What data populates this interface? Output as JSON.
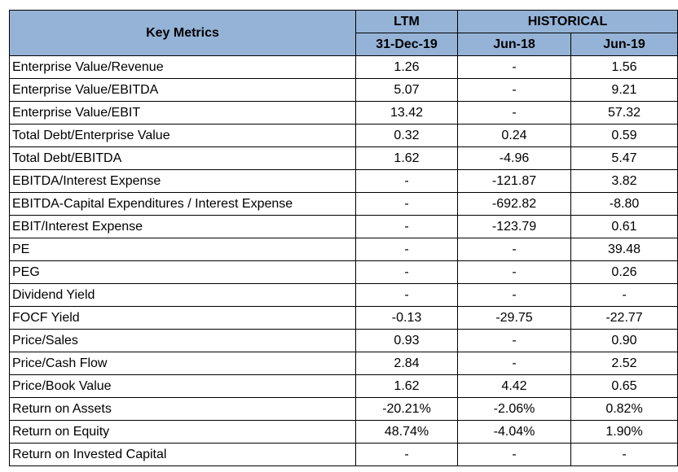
{
  "header": {
    "key_metrics": "Key Metrics",
    "ltm": "LTM",
    "historical": "HISTORICAL",
    "col_ltm_date": "31-Dec-19",
    "col_hist_1": "Jun-18",
    "col_hist_2": "Jun-19"
  },
  "rows": [
    {
      "label": "Enterprise Value/Revenue",
      "ltm": "1.26",
      "h1": "-",
      "h2": "1.56"
    },
    {
      "label": "Enterprise Value/EBITDA",
      "ltm": "5.07",
      "h1": "-",
      "h2": "9.21"
    },
    {
      "label": "Enterprise Value/EBIT",
      "ltm": "13.42",
      "h1": "-",
      "h2": "57.32"
    },
    {
      "label": "Total Debt/Enterprise Value",
      "ltm": "0.32",
      "h1": "0.24",
      "h2": "0.59"
    },
    {
      "label": "Total Debt/EBITDA",
      "ltm": "1.62",
      "h1": "-4.96",
      "h2": "5.47"
    },
    {
      "label": "EBITDA/Interest Expense",
      "ltm": "-",
      "h1": "-121.87",
      "h2": "3.82"
    },
    {
      "label": "EBITDA-Capital Expenditures / Interest Expense",
      "ltm": "-",
      "h1": "-692.82",
      "h2": "-8.80"
    },
    {
      "label": "EBIT/Interest Expense",
      "ltm": "-",
      "h1": "-123.79",
      "h2": "0.61"
    },
    {
      "label": "PE",
      "ltm": "-",
      "h1": "-",
      "h2": "39.48"
    },
    {
      "label": "PEG",
      "ltm": "-",
      "h1": "-",
      "h2": "0.26"
    },
    {
      "label": "Dividend Yield",
      "ltm": "-",
      "h1": "-",
      "h2": "-"
    },
    {
      "label": "FOCF Yield",
      "ltm": "-0.13",
      "h1": "-29.75",
      "h2": "-22.77"
    },
    {
      "label": "Price/Sales",
      "ltm": "0.93",
      "h1": "-",
      "h2": "0.90"
    },
    {
      "label": "Price/Cash Flow",
      "ltm": "2.84",
      "h1": "-",
      "h2": "2.52"
    },
    {
      "label": "Price/Book Value",
      "ltm": "1.62",
      "h1": "4.42",
      "h2": "0.65"
    },
    {
      "label": "Return on Assets",
      "ltm": "-20.21%",
      "h1": "-2.06%",
      "h2": "0.82%"
    },
    {
      "label": "Return on Equity",
      "ltm": "48.74%",
      "h1": "-4.04%",
      "h2": "1.90%"
    },
    {
      "label": "Return on Invested Capital",
      "ltm": "-",
      "h1": "-",
      "h2": "-"
    }
  ]
}
